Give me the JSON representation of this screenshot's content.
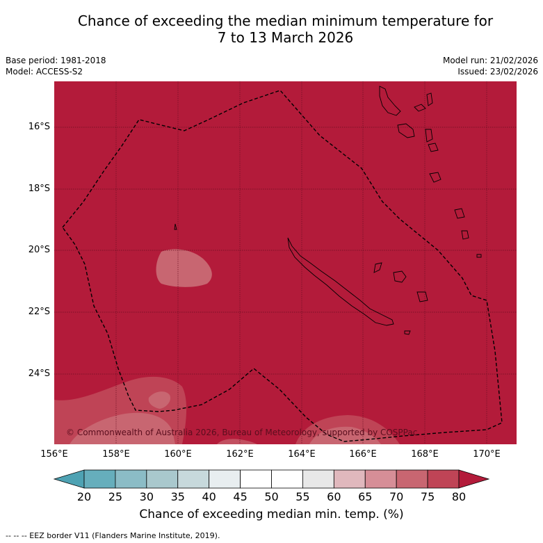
{
  "title": {
    "line1": "Chance of exceeding the median minimum temperature for",
    "line2": "7 to 13 March 2026"
  },
  "meta": {
    "base_period": "Base period: 1981-2018",
    "model": "Model: ACCESS-S2",
    "model_run": "Model run: 21/02/2026",
    "issued": "Issued: 23/02/2026"
  },
  "map": {
    "background_color": "#b31b3a",
    "lat_labels": [
      "16°S",
      "18°S",
      "20°S",
      "22°S",
      "24°S"
    ],
    "lon_labels": [
      "156°E",
      "158°E",
      "160°E",
      "162°E",
      "164°E",
      "166°E",
      "168°E",
      "170°E"
    ],
    "copyright": "© Commonwealth of Australia 2026, Bureau of Meteorology, supported by COSPPac"
  },
  "colorbar": {
    "ticks": [
      "20",
      "25",
      "30",
      "35",
      "40",
      "45",
      "50",
      "55",
      "60",
      "65",
      "70",
      "75",
      "80"
    ],
    "colors": [
      "#66aebc",
      "#8bbcc6",
      "#a9c8cd",
      "#c7d9dc",
      "#e8eef0",
      "#ffffff",
      "#ffffff",
      "#e8e8e8",
      "#e0b8bd",
      "#d68e97",
      "#c86671",
      "#bf4456"
    ],
    "left_extend_color": "#4ea2b3",
    "right_extend_color": "#b31b3a",
    "label": "Chance of exceeding median min. temp. (%)"
  },
  "footnote": "--  --  -- EEZ border V11 (Flanders Marine Institute, 2019)."
}
